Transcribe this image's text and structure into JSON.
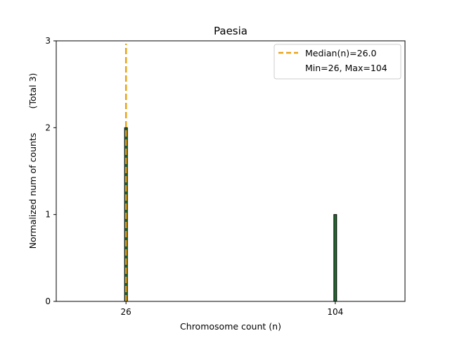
{
  "chart_data": {
    "type": "bar",
    "title": "Paesia",
    "xlabel": "Chromosome count (n)",
    "ylabel": "Normalized num of counts",
    "ylabel_note": "(Total 3)",
    "x": [
      26,
      104
    ],
    "values": [
      2,
      1
    ],
    "xlim": [
      0,
      130
    ],
    "ylim": [
      0,
      3
    ],
    "x_ticks": [
      26,
      104
    ],
    "y_ticks": [
      0,
      1,
      2,
      3
    ],
    "grid": false,
    "median": 26.0,
    "legend": {
      "placement": "top-right",
      "entries": [
        "Median(n)=26.0",
        "Min=26, Max=104"
      ]
    },
    "colors": {
      "bar_fill": "#1f6b2e",
      "bar_edge": "#000000",
      "median_line": "#e8a317"
    }
  }
}
